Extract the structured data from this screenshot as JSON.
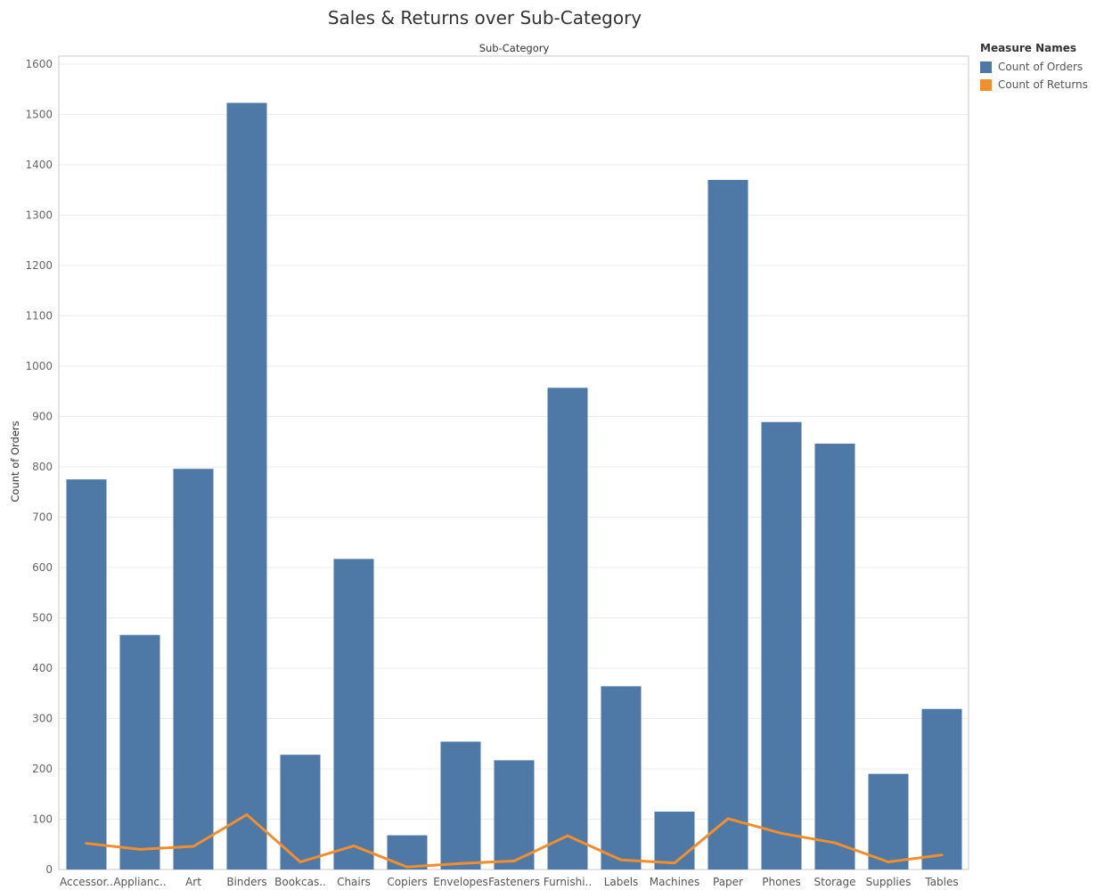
{
  "chart_data": {
    "type": "bar",
    "title": "Sales & Returns over Sub-Category",
    "column_header": "Sub-Category",
    "xlabel": "",
    "ylabel": "Count of Orders",
    "ylim": [
      0,
      1600
    ],
    "yticks": [
      0,
      100,
      200,
      300,
      400,
      500,
      600,
      700,
      800,
      900,
      1000,
      1100,
      1200,
      1300,
      1400,
      1500,
      1600
    ],
    "grid": true,
    "legend_placement": "top-right",
    "legend_title": "Measure Names",
    "categories": [
      "Accessor..",
      "Applianc..",
      "Art",
      "Binders",
      "Bookcas..",
      "Chairs",
      "Copiers",
      "Envelopes",
      "Fasteners",
      "Furnishi..",
      "Labels",
      "Machines",
      "Paper",
      "Phones",
      "Storage",
      "Supplies",
      "Tables"
    ],
    "series": [
      {
        "name": "Count of Orders",
        "type": "bar",
        "color": "#4e79a7",
        "values": [
          775,
          466,
          796,
          1523,
          228,
          617,
          68,
          254,
          217,
          957,
          364,
          115,
          1370,
          889,
          846,
          190,
          319
        ]
      },
      {
        "name": "Count of Returns",
        "type": "line",
        "color": "#f28e2b",
        "values": [
          52,
          40,
          46,
          109,
          15,
          47,
          5,
          12,
          17,
          67,
          19,
          13,
          101,
          72,
          53,
          15,
          29
        ]
      }
    ]
  }
}
